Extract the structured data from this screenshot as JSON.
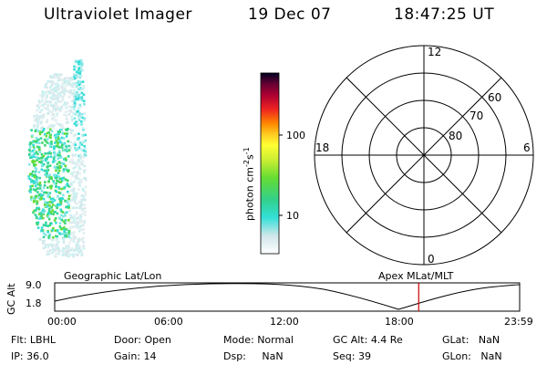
{
  "header": {
    "instrument": "Ultraviolet Imager",
    "date": "19 Dec 07",
    "time": "18:47:25 UT"
  },
  "colorbar": {
    "unit": "photon cm",
    "unit_exp1": "-2",
    "unit_mid": "s",
    "unit_exp2": "-1",
    "tick_high": "100",
    "tick_low": "10"
  },
  "polar": {
    "lat_labels": [
      "60",
      "70",
      "80"
    ],
    "mlt_top": "12",
    "mlt_bottom": "0",
    "mlt_left": "18",
    "mlt_right": "6"
  },
  "altitude_plot": {
    "ylabel": "GC Alt",
    "ytick_top": "9.0",
    "ytick_bottom": "1.8",
    "left_title": "Geographic Lat/Lon",
    "right_title": "Apex MLat/MLT",
    "xticks": [
      "00:00",
      "06:00",
      "12:00",
      "18:00",
      "23:59"
    ],
    "current_time_fraction": 0.7829,
    "marker_color": "#cc0000"
  },
  "info": {
    "filter": {
      "label": "Flt:",
      "value": "LBHL"
    },
    "door": {
      "label": "Door:",
      "value": "Open"
    },
    "mode": {
      "label": "Mode:",
      "value": "Normal"
    },
    "gc_alt": {
      "label": "GC Alt:",
      "value": "4.4 Re"
    },
    "glat": {
      "label": "GLat:",
      "value": "NaN"
    },
    "ip": {
      "label": "IP:",
      "value": "36.0"
    },
    "gain": {
      "label": "Gain:",
      "value": "14"
    },
    "dsp": {
      "label": "Dsp:",
      "value": "NaN"
    },
    "seq": {
      "label": "Seq:",
      "value": "39"
    },
    "glon": {
      "label": "GLon:",
      "value": "NaN"
    }
  }
}
